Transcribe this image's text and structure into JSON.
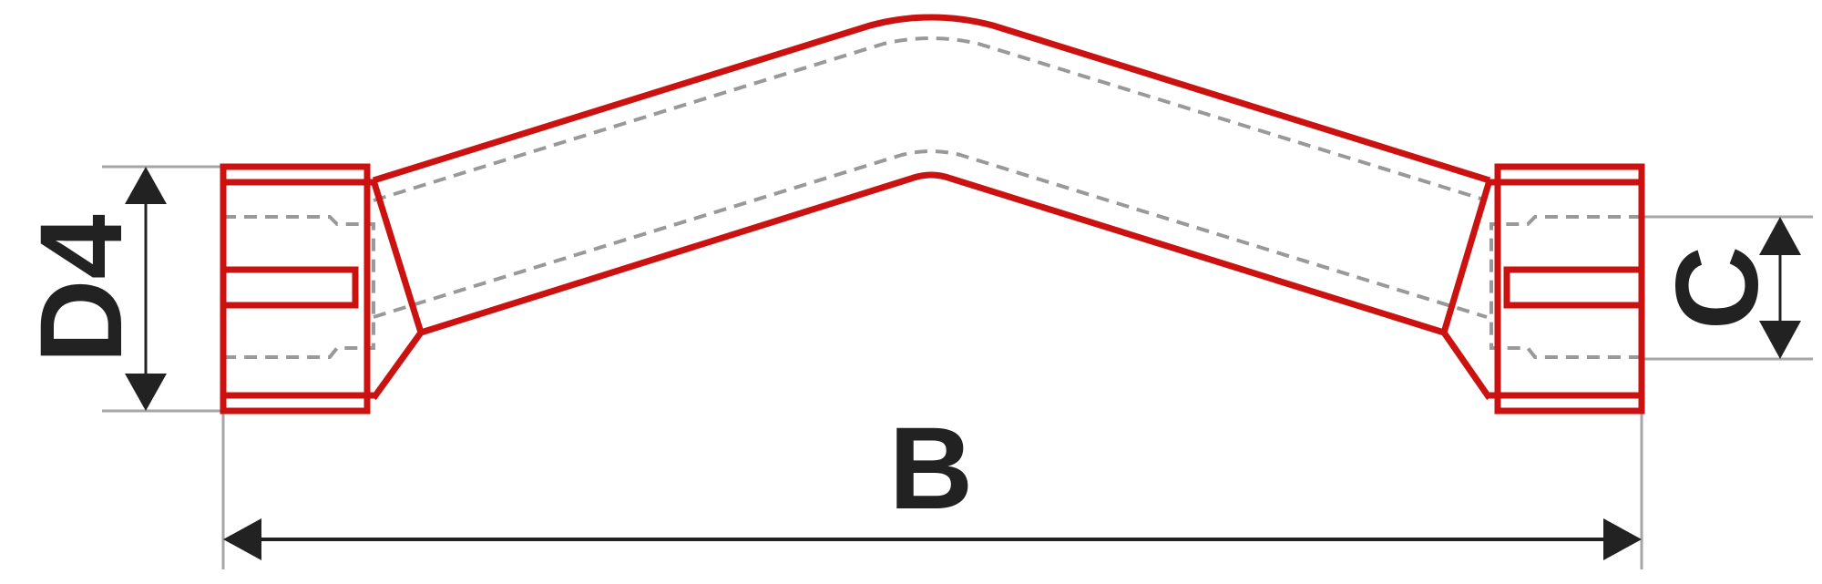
{
  "labels": {
    "d4": "D4",
    "b": "B",
    "c": "C"
  },
  "colors": {
    "outline": "#cc1111",
    "hidden_lines": "#999999",
    "dimension": "#222222",
    "extension_lines": "#a6a6a6"
  }
}
